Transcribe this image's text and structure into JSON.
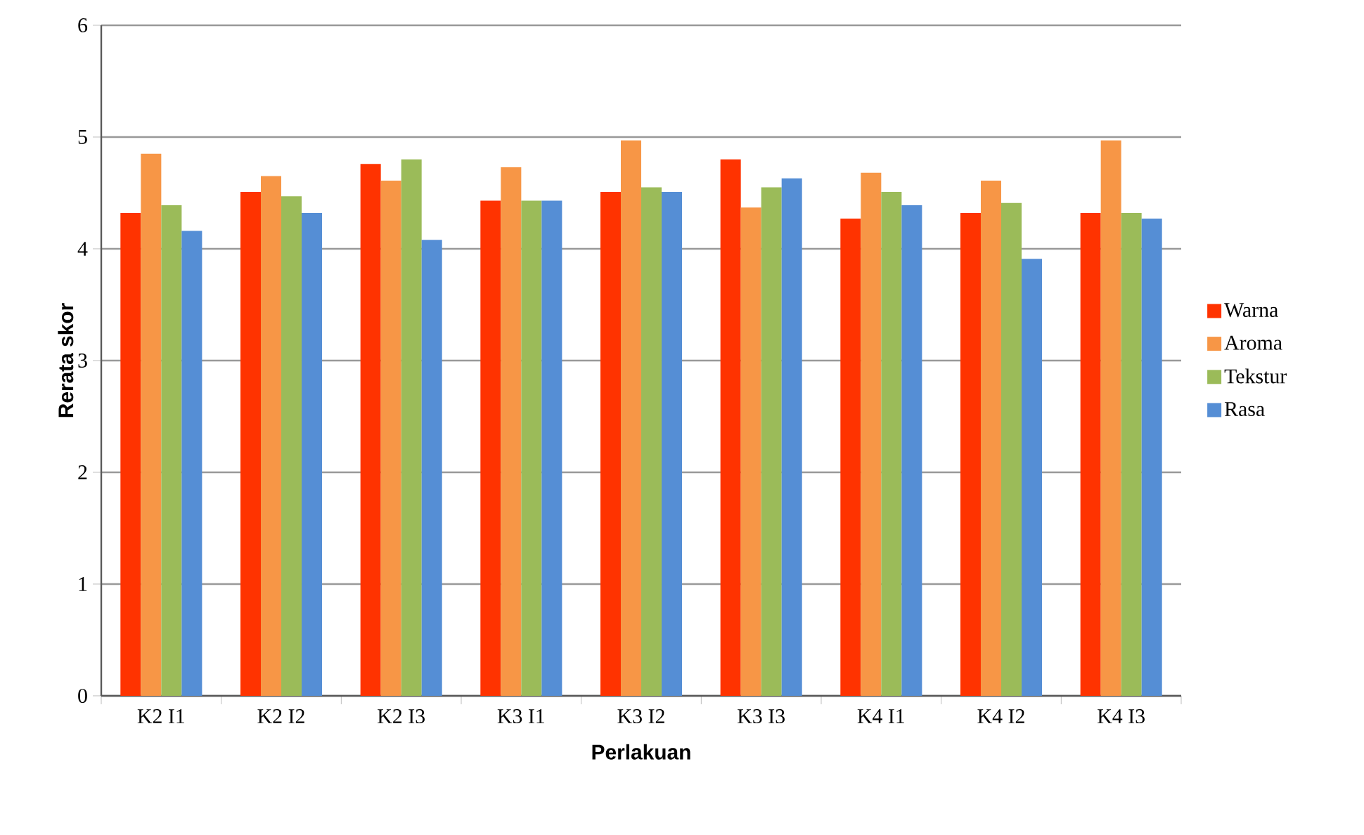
{
  "chart_data": {
    "type": "bar",
    "xlabel": "Perlakuan",
    "ylabel": "Rerata skor",
    "categories": [
      "K2 I1",
      "K2 I2",
      "K2 I3",
      "K3 I1",
      "K3 I2",
      "K3 I3",
      "K4 I1",
      "K4 I2",
      "K4 I3"
    ],
    "series": [
      {
        "name": "Warna",
        "color": "#ff3300",
        "values": [
          4.32,
          4.51,
          4.76,
          4.43,
          4.51,
          4.8,
          4.27,
          4.32,
          4.32
        ]
      },
      {
        "name": "Aroma",
        "color": "#f79646",
        "values": [
          4.85,
          4.65,
          4.61,
          4.73,
          4.97,
          4.37,
          4.68,
          4.61,
          4.97
        ]
      },
      {
        "name": "Tekstur",
        "color": "#9bbb59",
        "values": [
          4.39,
          4.47,
          4.8,
          4.43,
          4.55,
          4.55,
          4.51,
          4.41,
          4.32
        ]
      },
      {
        "name": "Rasa",
        "color": "#558ed5",
        "values": [
          4.16,
          4.32,
          4.08,
          4.43,
          4.51,
          4.63,
          4.39,
          3.91,
          4.27
        ]
      }
    ],
    "ylim": [
      0,
      6
    ],
    "yticks": [
      0,
      1,
      2,
      3,
      4,
      5,
      6
    ],
    "grid": "y",
    "legend": "right"
  }
}
